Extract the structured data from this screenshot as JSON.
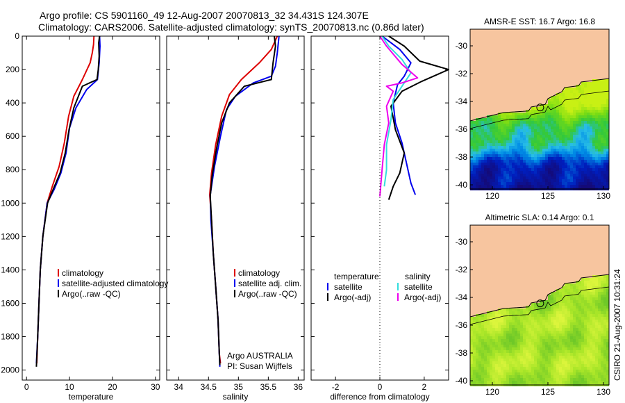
{
  "header": {
    "line1": "Argo profile: CS 5901160_49 12-Aug-2007 20070813_32 34.431S 124.307E",
    "line2": "Climatology: CARS2006. Satellite-adjusted climatology: synTS_20070813.nc (0.86d later)"
  },
  "colors": {
    "climatology": "#dd0000",
    "satellite": "#0000ee",
    "argo": "#000000",
    "sal_satellite": "#33dddd",
    "sal_argo": "#ee00ee",
    "land": "#f7c59f"
  },
  "chart_data": [
    {
      "type": "line",
      "id": "temperature",
      "xlabel": "temperature",
      "xlim": [
        -1,
        31
      ],
      "xticks": [
        0,
        10,
        20,
        30
      ],
      "ylim": [
        2060,
        0
      ],
      "yticks": [
        0,
        200,
        400,
        600,
        800,
        1000,
        1200,
        1400,
        1600,
        1800,
        2000
      ],
      "series": [
        {
          "name": "climatology",
          "color": "#dd0000",
          "points": [
            [
              15.7,
              0
            ],
            [
              15.6,
              50
            ],
            [
              15.3,
              100
            ],
            [
              14.8,
              160
            ],
            [
              13,
              260
            ],
            [
              11,
              360
            ],
            [
              9.8,
              480
            ],
            [
              8.8,
              640
            ],
            [
              7.6,
              780
            ],
            [
              6,
              900
            ],
            [
              4.8,
              1000
            ],
            [
              3.8,
              1200
            ],
            [
              3.2,
              1400
            ],
            [
              2.9,
              1600
            ],
            [
              2.6,
              1800
            ],
            [
              2.4,
              1960
            ]
          ]
        },
        {
          "name": "satellite-adjusted climatology",
          "color": "#0000ee",
          "points": [
            [
              17,
              0
            ],
            [
              17.1,
              60
            ],
            [
              16.9,
              160
            ],
            [
              16.5,
              260
            ],
            [
              14,
              320
            ],
            [
              11.5,
              430
            ],
            [
              10,
              550
            ],
            [
              9.2,
              700
            ],
            [
              8,
              820
            ],
            [
              6.4,
              920
            ],
            [
              4.8,
              1000
            ],
            [
              3.8,
              1200
            ],
            [
              3.2,
              1400
            ],
            [
              2.9,
              1600
            ],
            [
              2.6,
              1800
            ],
            [
              2.3,
              1960
            ]
          ]
        },
        {
          "name": "Argo(..raw -QC)",
          "color": "#000000",
          "points": [
            [
              17,
              0
            ],
            [
              16.8,
              40
            ],
            [
              16.9,
              120
            ],
            [
              16.7,
              200
            ],
            [
              16.4,
              260
            ],
            [
              13,
              300
            ],
            [
              11,
              430
            ],
            [
              9.9,
              560
            ],
            [
              9,
              700
            ],
            [
              7.8,
              820
            ],
            [
              6,
              930
            ],
            [
              4.9,
              1000
            ],
            [
              3.8,
              1200
            ],
            [
              3.2,
              1400
            ],
            [
              2.9,
              1600
            ],
            [
              2.6,
              1800
            ],
            [
              2.3,
              1980
            ]
          ]
        }
      ],
      "legend": [
        "climatology",
        "satellite-adjusted climatology",
        "Argo(..raw -QC)"
      ]
    },
    {
      "type": "line",
      "id": "salinity",
      "xlabel": "salinity",
      "xlim": [
        33.8,
        36.1
      ],
      "xticks": [
        34,
        34.5,
        35,
        35.5,
        36
      ],
      "ylim": [
        2060,
        0
      ],
      "yticks": [],
      "series": [
        {
          "name": "climatology",
          "color": "#dd0000",
          "points": [
            [
              35.65,
              0
            ],
            [
              35.55,
              80
            ],
            [
              35.35,
              160
            ],
            [
              35.05,
              260
            ],
            [
              34.85,
              350
            ],
            [
              34.72,
              480
            ],
            [
              34.62,
              650
            ],
            [
              34.55,
              820
            ],
            [
              34.52,
              950
            ],
            [
              34.55,
              1100
            ],
            [
              34.58,
              1300
            ],
            [
              34.62,
              1500
            ],
            [
              34.66,
              1700
            ],
            [
              34.68,
              1900
            ],
            [
              34.7,
              1960
            ]
          ]
        },
        {
          "name": "satellite adj. clim.",
          "color": "#0000ee",
          "points": [
            [
              35.68,
              0
            ],
            [
              35.65,
              100
            ],
            [
              35.62,
              180
            ],
            [
              35.55,
              240
            ],
            [
              35.25,
              280
            ],
            [
              34.95,
              360
            ],
            [
              34.8,
              440
            ],
            [
              34.7,
              600
            ],
            [
              34.6,
              780
            ],
            [
              34.53,
              950
            ],
            [
              34.54,
              1100
            ],
            [
              34.58,
              1300
            ],
            [
              34.62,
              1500
            ],
            [
              34.66,
              1700
            ],
            [
              34.68,
              1900
            ],
            [
              34.69,
              1980
            ]
          ]
        },
        {
          "name": "Argo(..raw -QC)",
          "color": "#000000",
          "points": [
            [
              35.6,
              0
            ],
            [
              35.62,
              60
            ],
            [
              35.58,
              160
            ],
            [
              35.55,
              260
            ],
            [
              35.1,
              300
            ],
            [
              34.85,
              400
            ],
            [
              34.72,
              520
            ],
            [
              34.63,
              680
            ],
            [
              34.56,
              840
            ],
            [
              34.53,
              960
            ],
            [
              34.55,
              1100
            ],
            [
              34.58,
              1300
            ],
            [
              34.62,
              1500
            ],
            [
              34.66,
              1700
            ],
            [
              34.68,
              1900
            ],
            [
              34.69,
              1970
            ]
          ]
        }
      ],
      "legend": [
        "climatology",
        "satellite adj. clim.",
        "Argo(..raw -QC)"
      ],
      "annotation1": "Argo AUSTRALIA",
      "annotation2": "PI: Susan Wijffels"
    },
    {
      "type": "line",
      "id": "difference",
      "xlabel": "difference from climatology",
      "xlim": [
        -3.1,
        3.1
      ],
      "xticks": [
        -2,
        0,
        2
      ],
      "ylim": [
        2060,
        0
      ],
      "yticks": [],
      "series": [
        {
          "name": "satellite (temperature)",
          "color": "#0000ee",
          "points": [
            [
              0.1,
              0
            ],
            [
              0.5,
              40
            ],
            [
              0.9,
              80
            ],
            [
              1.4,
              160
            ],
            [
              1.1,
              240
            ],
            [
              0.8,
              290
            ],
            [
              0.6,
              400
            ],
            [
              0.7,
              520
            ],
            [
              1.0,
              640
            ],
            [
              1.2,
              760
            ],
            [
              1.4,
              880
            ],
            [
              1.6,
              950
            ]
          ]
        },
        {
          "name": "Argo(-adj) (temperature)",
          "color": "#000000",
          "points": [
            [
              0.4,
              0
            ],
            [
              1.1,
              60
            ],
            [
              1.8,
              150
            ],
            [
              3.1,
              200
            ],
            [
              1.9,
              270
            ],
            [
              1.0,
              330
            ],
            [
              0.5,
              420
            ],
            [
              0.7,
              560
            ],
            [
              1.1,
              700
            ],
            [
              0.9,
              820
            ],
            [
              0.6,
              900
            ],
            [
              0.4,
              980
            ]
          ]
        },
        {
          "name": "satellite (salinity)",
          "color": "#33dddd",
          "points": [
            [
              0.1,
              0
            ],
            [
              0.4,
              60
            ],
            [
              1.0,
              140
            ],
            [
              1.4,
              220
            ],
            [
              1.0,
              300
            ],
            [
              0.6,
              380
            ],
            [
              0.5,
              500
            ],
            [
              0.3,
              650
            ],
            [
              0.3,
              800
            ],
            [
              0.2,
              900
            ]
          ]
        },
        {
          "name": "Argo(-adj) (salinity)",
          "color": "#ee00ee",
          "points": [
            [
              0,
              0
            ],
            [
              0.3,
              60
            ],
            [
              1.0,
              170
            ],
            [
              1.7,
              250
            ],
            [
              1.0,
              280
            ],
            [
              0.3,
              300
            ],
            [
              0.6,
              330
            ],
            [
              0.3,
              420
            ],
            [
              0.4,
              520
            ],
            [
              0.2,
              650
            ],
            [
              0.1,
              800
            ],
            [
              0,
              960
            ]
          ]
        }
      ],
      "legend_t_head": "temperature",
      "legend_s_head": "salinity",
      "legend_t": [
        "satellite",
        "Argo(-adj)"
      ],
      "legend_s": [
        "satellite",
        "Argo(-adj)"
      ]
    },
    {
      "type": "heatmap",
      "id": "sst_map",
      "title": "AMSR-E SST: 16.7 Argo: 16.8",
      "xlim": [
        118,
        130.5
      ],
      "ylim": [
        -40.3,
        -28.8
      ],
      "xticks": [
        120,
        125,
        130
      ],
      "yticks": [
        -30,
        -32,
        -34,
        -36,
        -38,
        -40
      ],
      "marker": [
        124.307,
        -34.431
      ]
    },
    {
      "type": "heatmap",
      "id": "sla_map",
      "title": "Altimetric SLA: 0.14 Argo: 0.1",
      "xlim": [
        118,
        130.5
      ],
      "ylim": [
        -40.3,
        -28.8
      ],
      "xticks": [
        120,
        125,
        130
      ],
      "yticks": [
        -30,
        -32,
        -34,
        -36,
        -38,
        -40
      ],
      "marker": [
        124.307,
        -34.431
      ]
    }
  ],
  "stamp": "CSIRO 21-Aug-2007 10:31:24"
}
